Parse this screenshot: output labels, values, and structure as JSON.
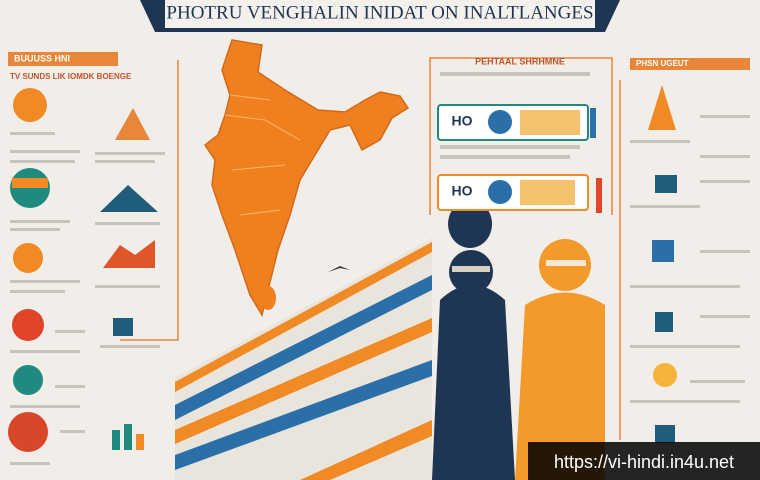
{
  "header": {
    "title": "PHOTRU VENGHALIN INIDAT ON INALTLANGES"
  },
  "panels": {
    "left": {
      "title": "BUUUSS HNI",
      "subtitle": "TV SUNDS LIK IOMDK BOENGE"
    },
    "center": {
      "title": "PEHTAAL SHRHMNE",
      "cards": [
        "HO",
        "HO"
      ]
    },
    "right": {
      "title": "PHSN UGEUT"
    }
  },
  "watermark": "https://vi-hindi.in4u.net"
}
